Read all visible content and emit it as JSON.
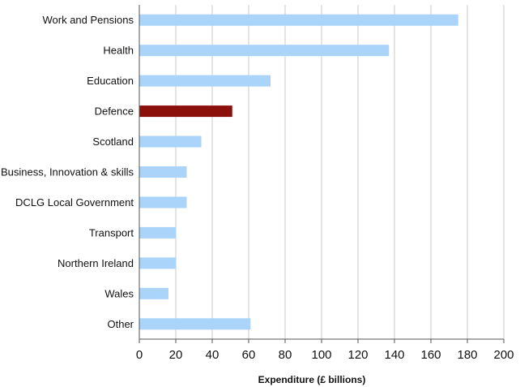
{
  "chart_data": {
    "type": "bar",
    "orientation": "horizontal",
    "categories": [
      "Work and Pensions",
      "Health",
      "Education",
      "Defence",
      "Scotland",
      "Business, Innovation & skills",
      "DCLG Local Government",
      "Transport",
      "Northern Ireland",
      "Wales",
      "Other"
    ],
    "values": [
      175,
      137,
      72,
      51,
      34,
      26,
      26,
      20,
      20,
      16,
      61
    ],
    "highlight_category": "Defence",
    "colors": {
      "bar": "#aad4fa",
      "highlight": "#8b0f0a"
    },
    "title": "",
    "xlabel": "Expenditure (£ billions)",
    "ylabel": "",
    "xlim": [
      0,
      200
    ],
    "xticks": [
      0,
      20,
      40,
      60,
      80,
      100,
      120,
      140,
      160,
      180,
      200
    ],
    "grid": "vertical"
  }
}
